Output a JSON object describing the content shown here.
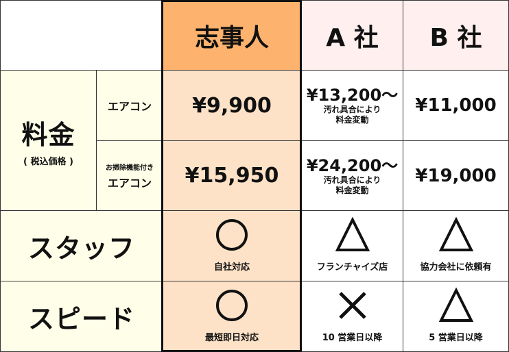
{
  "header": {
    "col_main": "志事人",
    "col_a": "A 社",
    "col_b": "B 社"
  },
  "colors": {
    "main_header": "#FDB36E",
    "main_body": "#FDE2C8",
    "label_bg": "#FFFFE9",
    "competitor_header": "#FFEFEF"
  },
  "price": {
    "label": "料金",
    "sublabel": "( 税込価格 )",
    "rows": [
      {
        "type_prefix": "",
        "type": "エアコン",
        "main": "¥9,900",
        "a": "¥13,200～",
        "a_note1": "汚れ具合により",
        "a_note2": "料金変動",
        "b": "¥11,000"
      },
      {
        "type_prefix": "お掃除機能付き",
        "type": "エアコン",
        "main": "¥15,950",
        "a": "¥24,200～",
        "a_note1": "汚れ具合により",
        "a_note2": "料金変動",
        "b": "¥19,000"
      }
    ]
  },
  "staff": {
    "label": "スタッフ",
    "main_icon": "circle",
    "main": "自社対応",
    "a_icon": "triangle",
    "a": "フランチャイズ店",
    "b_icon": "triangle",
    "b": "協力会社に依頼有"
  },
  "speed": {
    "label": "スピード",
    "main_icon": "circle",
    "main": "最短即日対応",
    "a_icon": "cross",
    "a": "10 営業日以降",
    "b_icon": "triangle",
    "b": "5 営業日以降"
  }
}
